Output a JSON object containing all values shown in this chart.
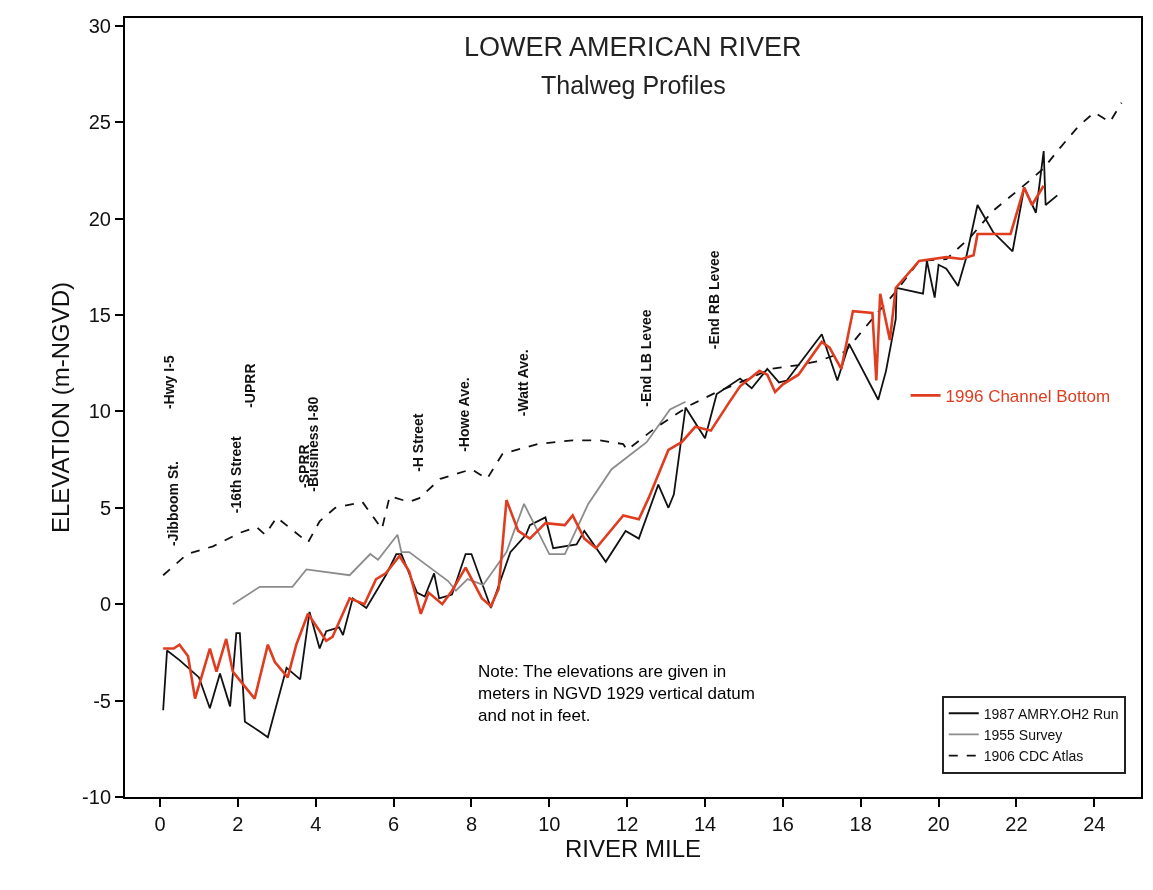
{
  "chart_data": {
    "type": "line",
    "title": "LOWER AMERICAN RIVER",
    "subtitle": "Thalweg Profiles",
    "xlabel": "RIVER MILE",
    "ylabel": "ELEVATION (m-NGVD)",
    "xlim": [
      -0.9,
      25.2
    ],
    "ylim": [
      -10,
      30.4
    ],
    "xticks": [
      0,
      2,
      4,
      6,
      8,
      10,
      12,
      14,
      16,
      18,
      20,
      22,
      24
    ],
    "yticks": [
      -10,
      -5,
      0,
      5,
      10,
      15,
      20,
      25,
      30
    ],
    "legend": "bottom right",
    "marker": "none",
    "series": [
      {
        "name": "1987 AMRY.OH2 Run",
        "color": "#111111",
        "line_style": "solid",
        "x": [
          0.08,
          0.18,
          0.5,
          1.0,
          1.28,
          1.54,
          1.8,
          1.96,
          2.05,
          2.18,
          2.56,
          2.77,
          3.25,
          3.6,
          3.84,
          4.1,
          4.27,
          4.6,
          4.7,
          4.95,
          5.3,
          5.8,
          6.07,
          6.2,
          6.6,
          6.8,
          7.04,
          7.17,
          7.5,
          7.85,
          8.0,
          8.5,
          9.0,
          9.4,
          9.5,
          9.9,
          10.1,
          10.7,
          10.9,
          11.45,
          11.96,
          12.3,
          12.8,
          13.06,
          13.2,
          13.5,
          14.0,
          14.3,
          14.9,
          15.2,
          15.6,
          15.9,
          16.1,
          17.0,
          17.4,
          17.7,
          18.45,
          18.65,
          18.9,
          18.92,
          19.6,
          19.7,
          19.9,
          20.0,
          20.2,
          20.5,
          20.7,
          21.0,
          21.4,
          21.9,
          22.2,
          22.5,
          22.7,
          22.75,
          23.05
        ],
        "values": [
          -5.5,
          -2.4,
          -2.9,
          -3.8,
          -5.4,
          -3.6,
          -5.3,
          -1.5,
          -1.5,
          -6.1,
          -6.6,
          -6.9,
          -3.3,
          -3.9,
          -0.4,
          -2.3,
          -1.4,
          -1.2,
          -1.6,
          0.3,
          -0.2,
          1.5,
          2.6,
          2.6,
          0.6,
          0.4,
          1.6,
          0.3,
          0.5,
          2.6,
          2.6,
          -0.2,
          2.7,
          3.6,
          4.1,
          4.5,
          2.9,
          3.1,
          3.8,
          2.2,
          3.8,
          3.4,
          6.2,
          5.0,
          5.7,
          10.2,
          8.6,
          10.9,
          11.7,
          11.2,
          12.2,
          11.5,
          11.6,
          14.0,
          11.6,
          13.5,
          10.6,
          12.1,
          14.8,
          16.4,
          16.1,
          17.8,
          15.9,
          17.6,
          17.4,
          16.5,
          17.9,
          20.7,
          19.3,
          18.3,
          21.6,
          20.3,
          23.5,
          20.7,
          21.2
        ]
      },
      {
        "name": "1955 Survey",
        "color": "#8c8c8c",
        "line_style": "solid",
        "x": [
          1.87,
          2.56,
          3.4,
          3.76,
          4.87,
          5.4,
          5.6,
          6.1,
          6.2,
          6.4,
          7.4,
          7.6,
          7.9,
          8.3,
          8.9,
          9.35,
          10.0,
          10.4,
          11.0,
          11.6,
          12.5,
          13.1,
          13.5
        ],
        "values": [
          0.0,
          0.9,
          0.9,
          1.8,
          1.5,
          2.6,
          2.3,
          3.6,
          2.7,
          2.7,
          1.2,
          0.7,
          1.3,
          1.0,
          2.7,
          5.2,
          2.6,
          2.6,
          5.2,
          7.0,
          8.4,
          10.1,
          10.5
        ]
      },
      {
        "name": "1906 CDC Atlas",
        "color": "#111111",
        "line_style": "dashed",
        "x": [
          0.08,
          0.7,
          1.36,
          2.05,
          2.48,
          2.7,
          3.0,
          3.8,
          4.1,
          4.5,
          5.2,
          5.7,
          5.9,
          6.4,
          6.66,
          7.2,
          8.0,
          8.4,
          8.8,
          9.7,
          10.6,
          11.3,
          11.9,
          12.0,
          12.7,
          13.6,
          14.3,
          14.9,
          15.7,
          16.4,
          16.9,
          17.6,
          18.3,
          18.9,
          19.5,
          20.2,
          20.8,
          21.4,
          22.3,
          22.7,
          23.05,
          23.6,
          24.0,
          24.4,
          24.7
        ],
        "values": [
          1.5,
          2.6,
          3.0,
          3.7,
          4.0,
          3.6,
          4.5,
          3.2,
          4.3,
          5.0,
          5.3,
          3.9,
          5.6,
          5.3,
          5.5,
          6.5,
          7.0,
          6.5,
          7.8,
          8.3,
          8.5,
          8.5,
          8.3,
          8.0,
          9.1,
          10.3,
          11.0,
          11.5,
          12.2,
          12.4,
          12.6,
          13.1,
          14.8,
          16.2,
          17.8,
          17.9,
          19.0,
          20.4,
          21.9,
          22.6,
          23.5,
          24.8,
          25.5,
          25.0,
          26.0
        ]
      },
      {
        "name": "1996 Channel Bottom",
        "color": "#e03c1f",
        "line_style": "solid",
        "x": [
          0.08,
          0.35,
          0.5,
          0.72,
          0.9,
          1.28,
          1.45,
          1.7,
          1.87,
          2.43,
          2.77,
          2.95,
          3.28,
          3.5,
          3.8,
          4.27,
          4.43,
          4.87,
          5.25,
          5.55,
          5.8,
          6.15,
          6.4,
          6.7,
          6.9,
          7.25,
          7.5,
          7.85,
          8.27,
          8.5,
          8.7,
          8.9,
          9.2,
          9.5,
          9.9,
          10.4,
          10.6,
          10.9,
          11.2,
          11.9,
          12.3,
          12.55,
          13.06,
          13.4,
          13.75,
          14.15,
          14.6,
          14.9,
          15.4,
          15.6,
          15.8,
          16.0,
          16.4,
          17.0,
          17.2,
          17.5,
          17.8,
          18.3,
          18.4,
          18.5,
          18.75,
          18.9,
          19.5,
          19.85,
          20.2,
          20.6,
          20.9,
          21.0,
          21.85,
          22.2,
          22.4,
          22.7
        ],
        "values": [
          -2.3,
          -2.3,
          -2.1,
          -2.7,
          -4.9,
          -2.3,
          -3.5,
          -1.8,
          -3.5,
          -4.9,
          -2.1,
          -3.0,
          -3.8,
          -2.1,
          -0.5,
          -1.9,
          -1.7,
          0.3,
          0.0,
          1.3,
          1.6,
          2.5,
          1.7,
          -0.5,
          0.6,
          0.0,
          0.7,
          1.9,
          0.3,
          -0.1,
          0.8,
          5.4,
          3.8,
          3.4,
          4.2,
          4.1,
          4.6,
          3.4,
          2.9,
          4.6,
          4.4,
          5.5,
          8.0,
          8.4,
          9.2,
          9.0,
          10.4,
          11.3,
          12.1,
          11.9,
          11.0,
          11.4,
          11.9,
          13.6,
          13.3,
          12.2,
          15.2,
          15.1,
          11.6,
          16.1,
          13.7,
          16.4,
          17.8,
          17.9,
          18.0,
          17.9,
          18.1,
          19.2,
          19.2,
          21.6,
          20.7,
          21.7
        ]
      }
    ],
    "annotations": [
      "-Jibboom St.",
      "-Hwy I-5",
      "-16th Street",
      "-UPRR",
      "-SPRR",
      "-Business I-80",
      "-H Street",
      "-Howe Ave.",
      "-Watt Ave.",
      "-End LB Levee",
      "-End RB Levee",
      "Note: The elevations are given in meters in NGVD 1929 vertical datum and not in feet."
    ]
  }
}
